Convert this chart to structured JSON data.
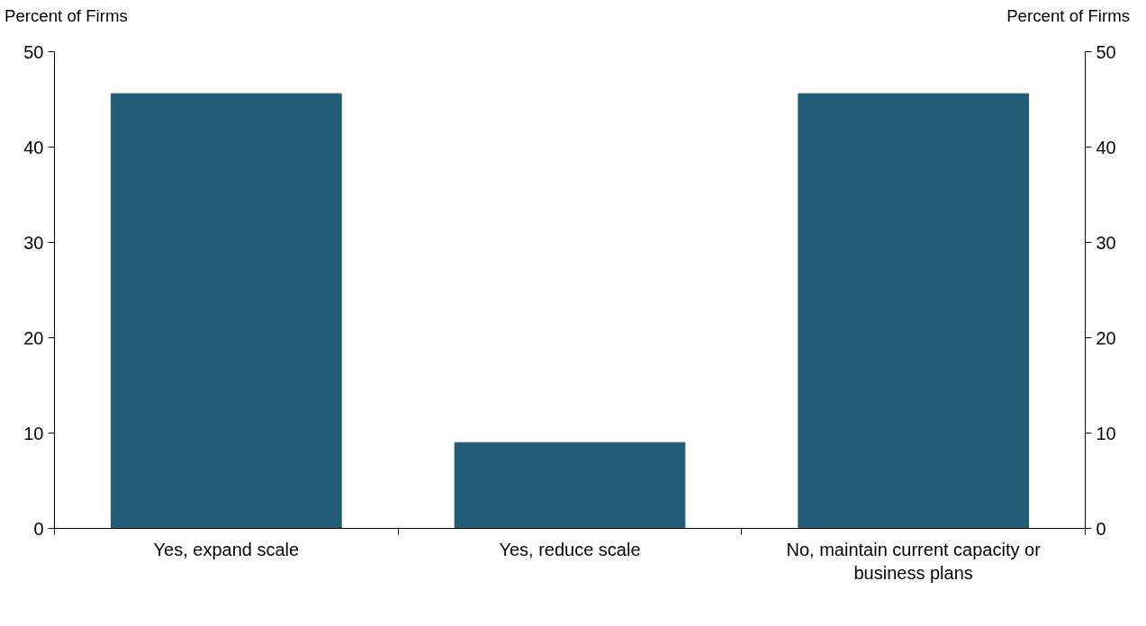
{
  "chart_data": {
    "type": "bar",
    "ylabel": "Percent of Firms",
    "y2label": "Percent of Firms",
    "categories": [
      "Yes, expand scale",
      "Yes, reduce scale",
      "No, maintain current capacity or business plans"
    ],
    "values": [
      45.6,
      9.0,
      45.6
    ],
    "color": "#225e78",
    "ylim": [
      0,
      50
    ],
    "yticks": [
      0,
      10,
      20,
      30,
      40,
      50
    ],
    "y2lim": [
      0,
      50
    ],
    "y2ticks": [
      0,
      10,
      20,
      30,
      40,
      50
    ],
    "grid": false
  }
}
